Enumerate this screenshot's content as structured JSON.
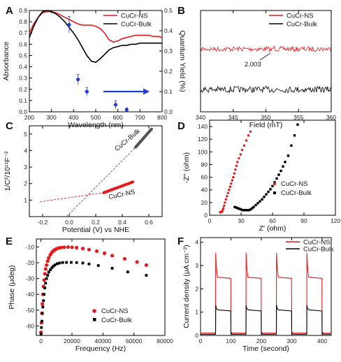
{
  "chart_data": [
    {
      "panel": "A",
      "type": "line",
      "xlabel": "Wavelength (nm)",
      "ylabel": "Absorbance",
      "y2label": "Quantum Yield (%)",
      "xlim": [
        200,
        800
      ],
      "ylim": [
        0.0,
        0.9
      ],
      "y2lim": [
        0.0,
        0.5
      ],
      "xticks": [
        200,
        300,
        400,
        500,
        600,
        700,
        800
      ],
      "yticks": [
        0.0,
        0.1,
        0.2,
        0.3,
        0.4,
        0.5,
        0.6,
        0.7,
        0.8,
        0.9
      ],
      "y2ticks": [
        0.0,
        0.1,
        0.2,
        0.3,
        0.4,
        0.5
      ],
      "legend_position": "top-right",
      "series": [
        {
          "name": "CuCr-NS",
          "color": "#e41a1c",
          "x": [
            200,
            220,
            240,
            260,
            280,
            300,
            320,
            340,
            360,
            380,
            400,
            420,
            440,
            460,
            480,
            500,
            520,
            540,
            560,
            580,
            600,
            620,
            640,
            660,
            680,
            700,
            720,
            740,
            760,
            780,
            800
          ],
          "values": [
            0.7,
            0.78,
            0.84,
            0.88,
            0.89,
            0.89,
            0.88,
            0.86,
            0.84,
            0.82,
            0.8,
            0.78,
            0.77,
            0.77,
            0.77,
            0.76,
            0.74,
            0.7,
            0.64,
            0.62,
            0.63,
            0.65,
            0.66,
            0.67,
            0.68,
            0.68,
            0.68,
            0.68,
            0.67,
            0.67,
            0.66
          ]
        },
        {
          "name": "CuCr-Bulk",
          "color": "#000000",
          "x": [
            200,
            220,
            240,
            260,
            280,
            300,
            320,
            340,
            360,
            380,
            400,
            420,
            440,
            460,
            480,
            500,
            520,
            540,
            560,
            580,
            600,
            620,
            640,
            660,
            680,
            700,
            720,
            740,
            760,
            780,
            800
          ],
          "values": [
            0.66,
            0.76,
            0.84,
            0.89,
            0.9,
            0.89,
            0.87,
            0.84,
            0.8,
            0.75,
            0.7,
            0.64,
            0.57,
            0.5,
            0.45,
            0.44,
            0.47,
            0.51,
            0.55,
            0.57,
            0.58,
            0.59,
            0.59,
            0.6,
            0.6,
            0.61,
            0.61,
            0.61,
            0.61,
            0.61,
            0.61
          ]
        }
      ],
      "quantum_yield": {
        "axis": "right",
        "color": "#1f3fd0",
        "x": [
          380,
          420,
          460,
          590,
          640
        ],
        "values": [
          0.43,
          0.16,
          0.1,
          0.035,
          0.01
        ],
        "errors": [
          0.04,
          0.025,
          0.02,
          0.02,
          0.01
        ]
      },
      "annotation": "arrow pointing right"
    },
    {
      "panel": "B",
      "type": "line",
      "xlabel": "Field (mT)",
      "xlim": [
        340,
        360
      ],
      "xticks": [
        340,
        345,
        350,
        355,
        360
      ],
      "legend_position": "top-right",
      "series": [
        {
          "name": "CuCr-NS",
          "color": "#e41a1c",
          "baseline": 0.62
        },
        {
          "name": "CuCr-Bulk",
          "color": "#000000",
          "baseline": 0.22
        }
      ],
      "annotation": "2.003",
      "signal_position": 351
    },
    {
      "panel": "C",
      "type": "scatter",
      "xlabel": "Potential (V) vs NHE",
      "ylabel": "1/C²/10¹¹F⁻²",
      "xlim": [
        -0.3,
        0.7
      ],
      "ylim": [
        0,
        5.5
      ],
      "xticks": [
        -0.2,
        0.0,
        0.2,
        0.4,
        0.6
      ],
      "yticks": [
        1,
        2,
        3,
        4,
        5
      ],
      "series": [
        {
          "name": "CuCr-Bulk",
          "color": "#555555",
          "x_range": [
            0.5,
            0.62
          ],
          "y_range": [
            4.2,
            5.3
          ],
          "intercept": -0.02,
          "label": "CuCr-Bulk"
        },
        {
          "name": "CuCr-NS",
          "color": "#e41a1c",
          "x_range": [
            0.26,
            0.48
          ],
          "y_range": [
            1.45,
            2.1
          ],
          "intercept": -0.22,
          "label": "CuCr-NS"
        }
      ]
    },
    {
      "panel": "D",
      "type": "scatter",
      "xlabel": "Z' (ohm)",
      "ylabel": "-Z'' (ohm)",
      "xlim": [
        0,
        120
      ],
      "ylim": [
        0,
        150
      ],
      "xticks": [
        0,
        30,
        60,
        90,
        120
      ],
      "yticks": [
        0,
        20,
        40,
        60,
        80,
        100,
        120,
        140
      ],
      "legend_position": "center-right",
      "series": [
        {
          "name": "CuCr-NS",
          "color": "#e41a1c",
          "x": [
            10,
            10.5,
            11,
            11.5,
            12,
            12.5,
            13,
            13.8,
            14.5,
            15.5,
            16.5,
            17.5,
            18.5,
            19.5,
            20.5,
            21.5,
            22.5,
            23.5,
            24.5,
            25.5,
            26.5,
            28,
            29.5,
            31,
            33,
            35,
            37,
            39
          ],
          "values": [
            5,
            5,
            5,
            5.5,
            6,
            8,
            11,
            15,
            20,
            25,
            30,
            35,
            40,
            45,
            50,
            55,
            60,
            66,
            72,
            78,
            84,
            90,
            96,
            103,
            110,
            118,
            126,
            132
          ]
        },
        {
          "name": "CuCr-Bulk",
          "color": "#000000",
          "x": [
            24,
            25.5,
            27,
            28.5,
            30,
            31.5,
            33,
            34.5,
            36,
            37.5,
            39,
            40.5,
            42,
            44,
            46,
            48,
            50,
            52,
            54,
            56,
            58,
            60,
            62,
            64,
            66,
            68,
            70,
            72,
            75,
            78,
            81,
            84
          ],
          "values": [
            13,
            12,
            11,
            10,
            9,
            8,
            8,
            8,
            8,
            8,
            9,
            11,
            13,
            16,
            19,
            22,
            25,
            29,
            33,
            37,
            41,
            46,
            52,
            58,
            64,
            70,
            77,
            84,
            94,
            110,
            126,
            143
          ]
        }
      ]
    },
    {
      "panel": "E",
      "type": "scatter",
      "xlabel": "Frequency (Hz)",
      "ylabel": "Phase (μdeg)",
      "xlim": [
        -3000,
        80000
      ],
      "ylim": [
        -66,
        -5
      ],
      "xticks": [
        0,
        20000,
        40000,
        60000,
        80000
      ],
      "yticks": [
        -60,
        -50,
        -40,
        -30,
        -20,
        -10
      ],
      "legend_position": "bottom-right",
      "series": [
        {
          "name": "CuCr-NS",
          "color": "#e41a1c",
          "x": [
            0,
            300,
            600,
            900,
            1200,
            1600,
            2000,
            2500,
            3000,
            3600,
            4300,
            5000,
            6000,
            7000,
            8000,
            9000,
            10000,
            11500,
            13000,
            15000,
            17500,
            20000,
            23000,
            27000,
            31000,
            36000,
            41000,
            46000,
            54000,
            62000,
            68000
          ],
          "values": [
            -64,
            -58,
            -52,
            -46,
            -40,
            -35,
            -31,
            -27,
            -24,
            -21.5,
            -19,
            -17,
            -15,
            -13.5,
            -12.5,
            -11.8,
            -11.2,
            -10.7,
            -10.4,
            -10.2,
            -10.1,
            -10.2,
            -10.5,
            -11,
            -11.7,
            -12.7,
            -14,
            -15.5,
            -17.5,
            -19.5,
            -21.5
          ]
        },
        {
          "name": "CuCr-Bulk",
          "color": "#000000",
          "x": [
            0,
            300,
            600,
            900,
            1200,
            1600,
            2000,
            2500,
            3000,
            3600,
            4300,
            5000,
            6000,
            7000,
            8000,
            9000,
            10500,
            12000,
            14000,
            16500,
            19500,
            23000,
            27000,
            31000,
            37000,
            46000,
            56000,
            68000
          ],
          "values": [
            -65,
            -61,
            -57,
            -52,
            -48,
            -44,
            -40,
            -36,
            -33,
            -30,
            -28,
            -26,
            -24.5,
            -23.2,
            -22.2,
            -21.4,
            -20.6,
            -20.2,
            -19.9,
            -19.8,
            -19.8,
            -19.9,
            -20.2,
            -20.8,
            -21.8,
            -23.5,
            -25.8,
            -28
          ]
        }
      ]
    },
    {
      "panel": "F",
      "type": "line",
      "xlabel": "Time (second)",
      "ylabel": "Current density (μA cm⁻²)",
      "xlim": [
        0,
        430
      ],
      "ylim": [
        0,
        4.2
      ],
      "xticks": [
        0,
        100,
        200,
        300,
        400
      ],
      "yticks": [
        0,
        1,
        2,
        3,
        4
      ],
      "legend_position": "top-right",
      "on_intervals": [
        [
          50,
          100
        ],
        [
          150,
          200
        ],
        [
          250,
          300
        ],
        [
          350,
          400
        ]
      ],
      "series": [
        {
          "name": "CuCr-NS",
          "color": "#e41a1c",
          "dark": 0.1,
          "peak": 3.55,
          "steady": 2.45
        },
        {
          "name": "CuCr-Bulk",
          "color": "#000000",
          "dark": 0.05,
          "peak": 1.3,
          "steady": 1.05
        }
      ]
    }
  ]
}
